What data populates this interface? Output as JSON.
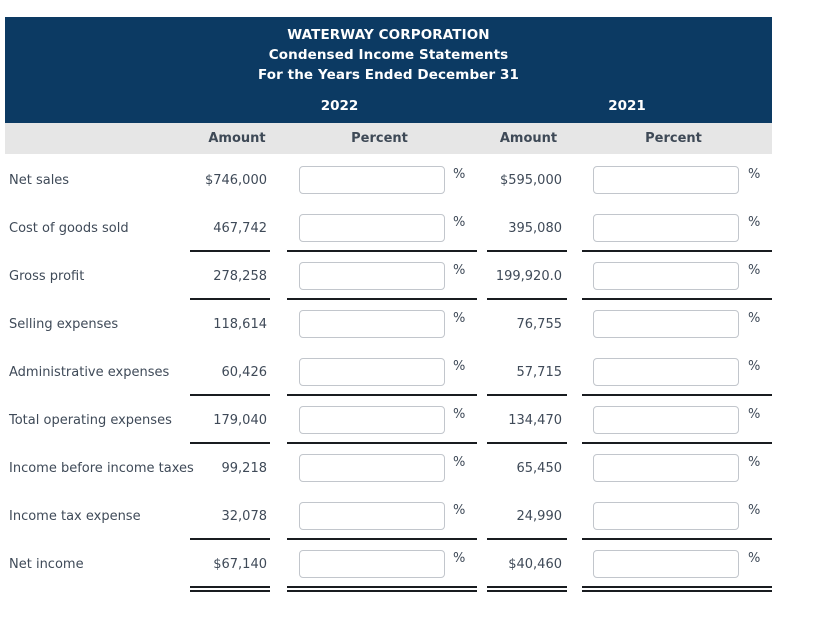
{
  "header": {
    "title_lines": [
      "WATERWAY CORPORATION",
      "Condensed Income Statements",
      "For the Years Ended December 31"
    ],
    "year_columns": [
      "2022",
      "2021"
    ]
  },
  "columns": {
    "amount_label": "Amount",
    "percent_label": "Percent",
    "percent_suffix": "%"
  },
  "rows": [
    {
      "label": "Net sales",
      "amount_2022": "$746,000",
      "percent_2022": "",
      "amount_2021": "$595,000",
      "percent_2021": "",
      "rule": "none"
    },
    {
      "label": "Cost of goods sold",
      "amount_2022": "467,742",
      "percent_2022": "",
      "amount_2021": "395,080",
      "percent_2021": "",
      "rule": "single"
    },
    {
      "label": "Gross profit",
      "amount_2022": "278,258",
      "percent_2022": "",
      "amount_2021": "199,920.0",
      "percent_2021": "",
      "rule": "single"
    },
    {
      "label": "Selling expenses",
      "amount_2022": "118,614",
      "percent_2022": "",
      "amount_2021": "76,755",
      "percent_2021": "",
      "rule": "none"
    },
    {
      "label": "Administrative expenses",
      "amount_2022": "60,426",
      "percent_2022": "",
      "amount_2021": "57,715",
      "percent_2021": "",
      "rule": "single"
    },
    {
      "label": "Total operating expenses",
      "amount_2022": "179,040",
      "percent_2022": "",
      "amount_2021": "134,470",
      "percent_2021": "",
      "rule": "single"
    },
    {
      "label": "Income before income taxes",
      "amount_2022": "99,218",
      "percent_2022": "",
      "amount_2021": "65,450",
      "percent_2021": "",
      "rule": "none"
    },
    {
      "label": "Income tax expense",
      "amount_2022": "32,078",
      "percent_2022": "",
      "amount_2021": "24,990",
      "percent_2021": "",
      "rule": "single"
    },
    {
      "label": "Net income",
      "amount_2022": "$67,140",
      "percent_2022": "",
      "amount_2021": "$40,460",
      "percent_2021": "",
      "rule": "double"
    }
  ],
  "colors": {
    "header_navy": "#0c3a63",
    "band_gray": "#e6e6e6",
    "text": "#3f4a58",
    "rule": "#191c20",
    "input_border": "#c2c6cc"
  }
}
